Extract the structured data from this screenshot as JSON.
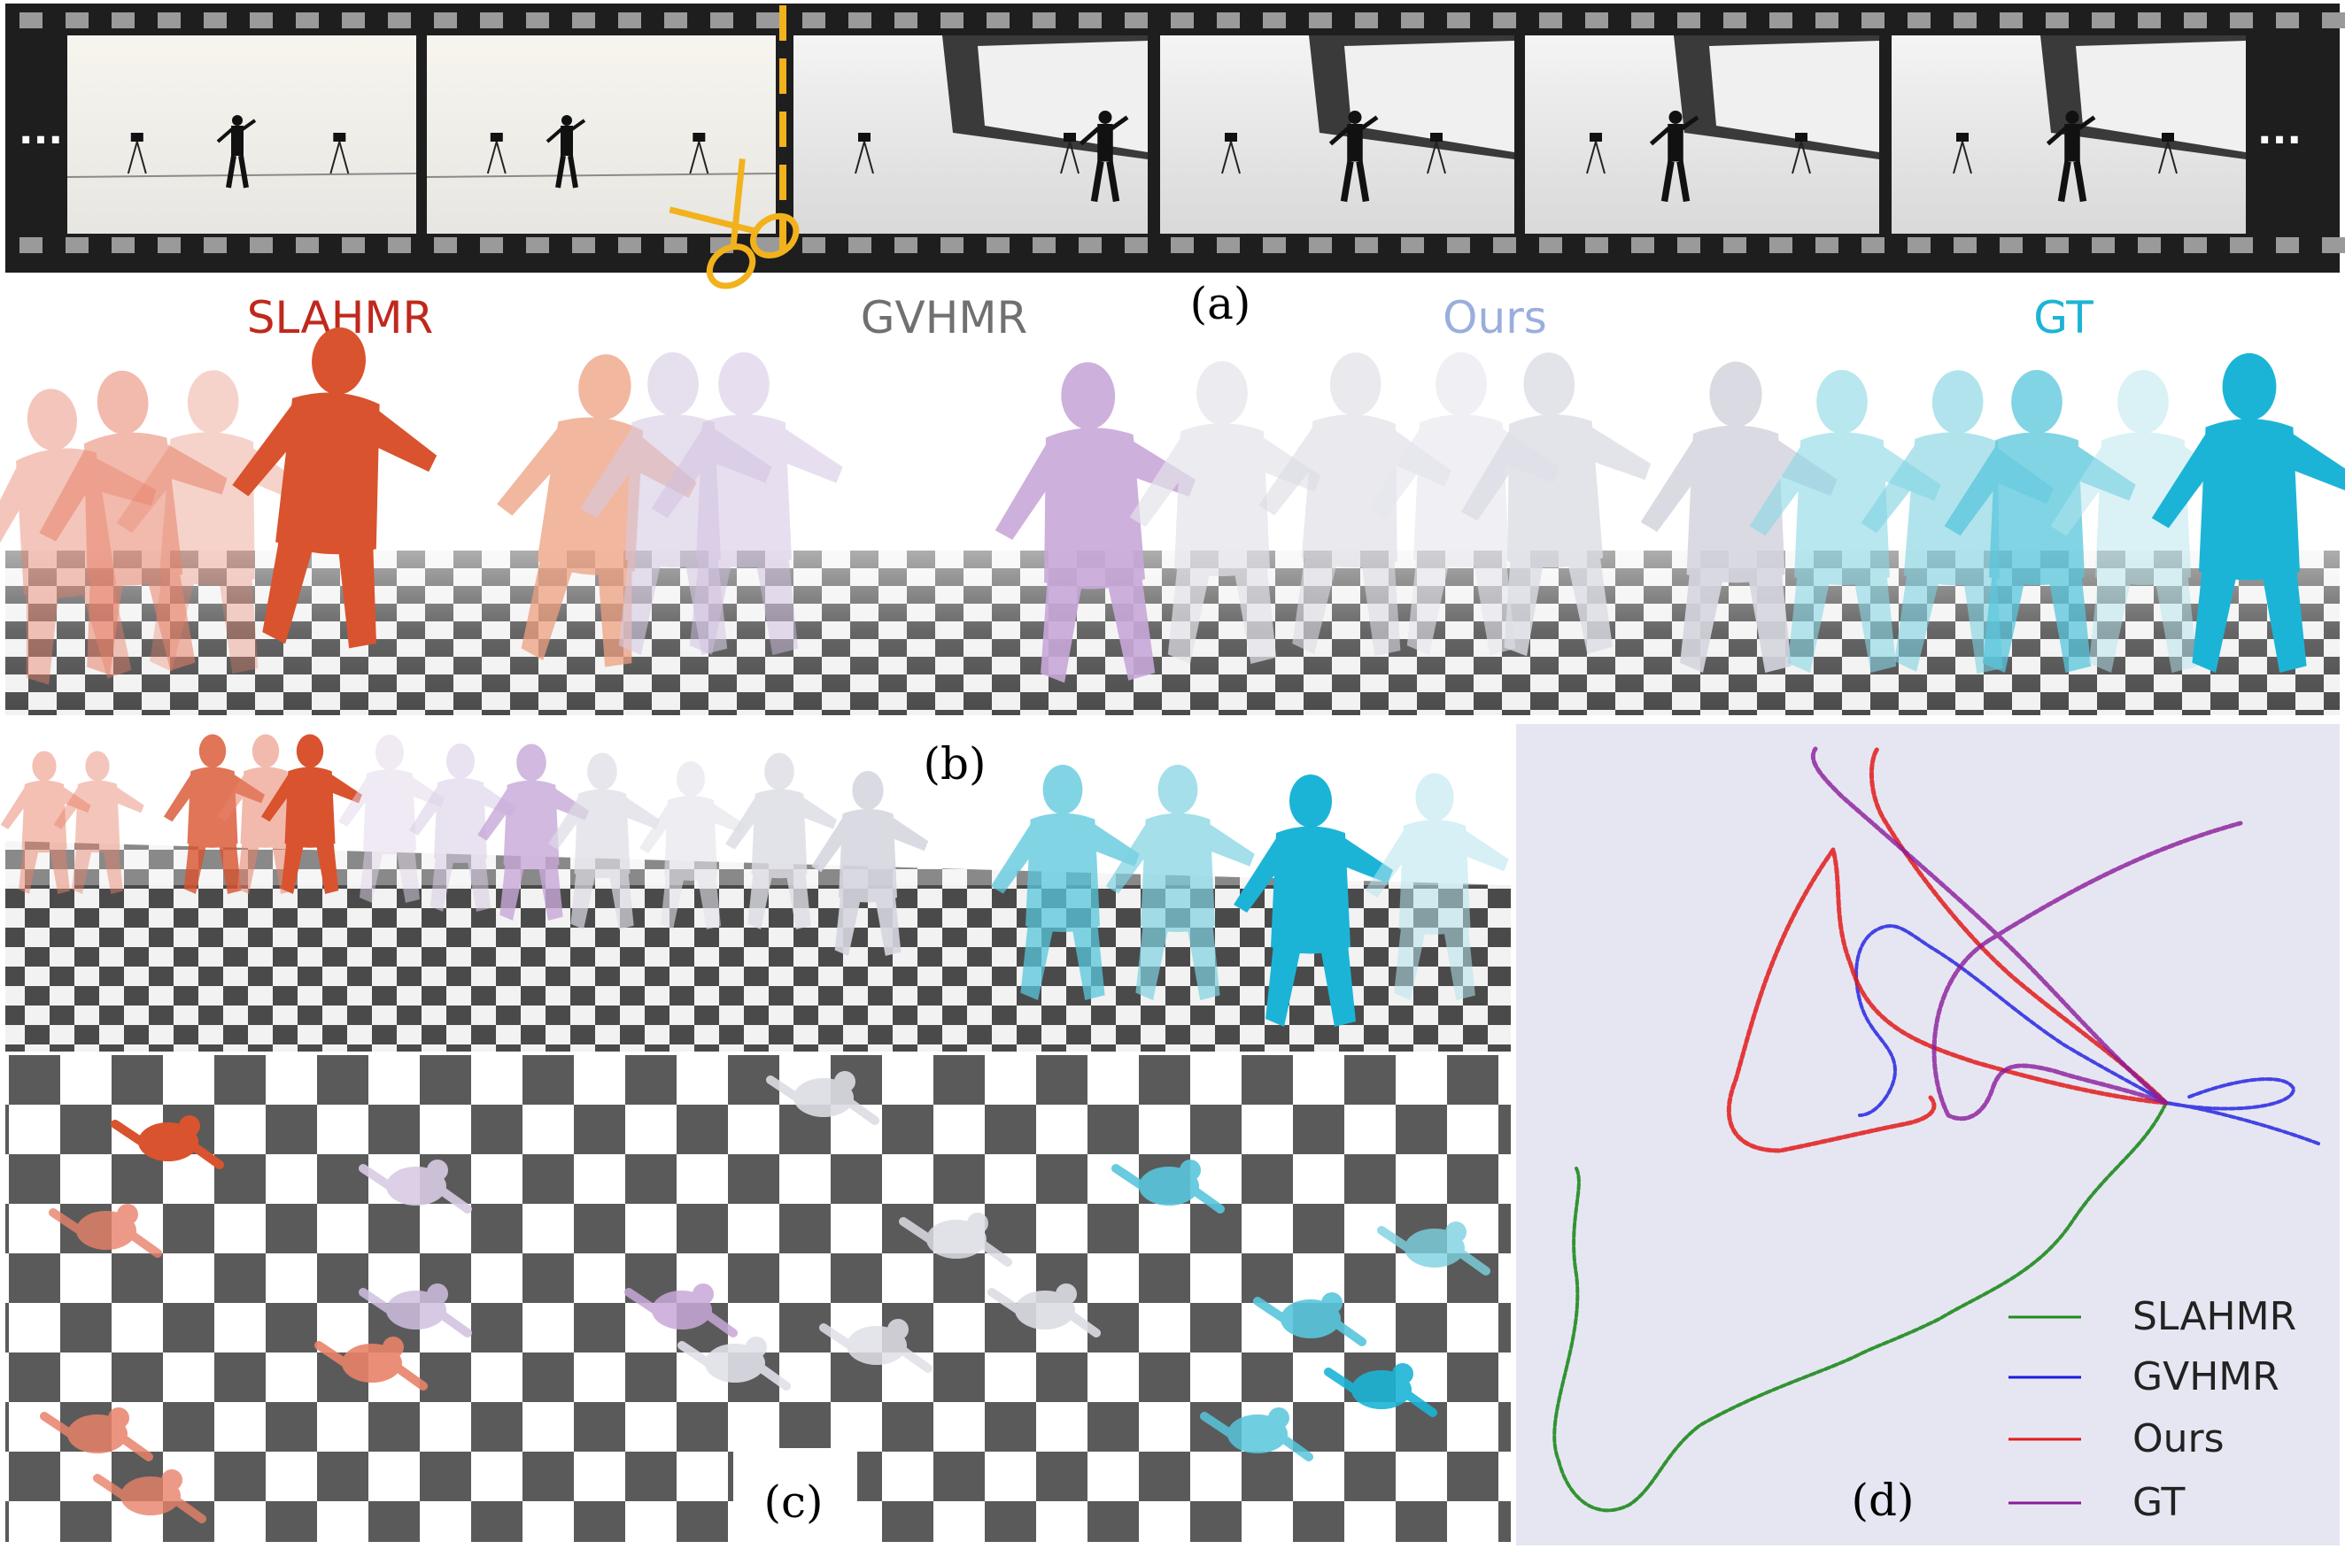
{
  "panels": {
    "a": "(a)",
    "b": "(b)",
    "c": "(c)",
    "d": "(d)"
  },
  "filmstrip": {
    "left_ellipsis": "...",
    "right_ellipsis": "..."
  },
  "methods": [
    {
      "label": "SLAHMR",
      "color": "#c0281c"
    },
    {
      "label": "GVHMR",
      "color": "#707070"
    },
    {
      "label": "Ours",
      "color": "#9aaedd"
    },
    {
      "label": "GT",
      "color": "#1cb4d6"
    }
  ],
  "trajectory_legend": [
    {
      "label": "SLAHMR",
      "color": "#1e8a1e"
    },
    {
      "label": "GVHMR",
      "color": "#1a1ae0"
    },
    {
      "label": "Ours",
      "color": "#e01a1a"
    },
    {
      "label": "GT",
      "color": "#8a1a9a"
    }
  ],
  "colors": {
    "film": "#1e1e1e",
    "checker_dark": "#5a5a5a",
    "plot_bg": "#e6e6f2",
    "scissors": "#f2b21c"
  }
}
